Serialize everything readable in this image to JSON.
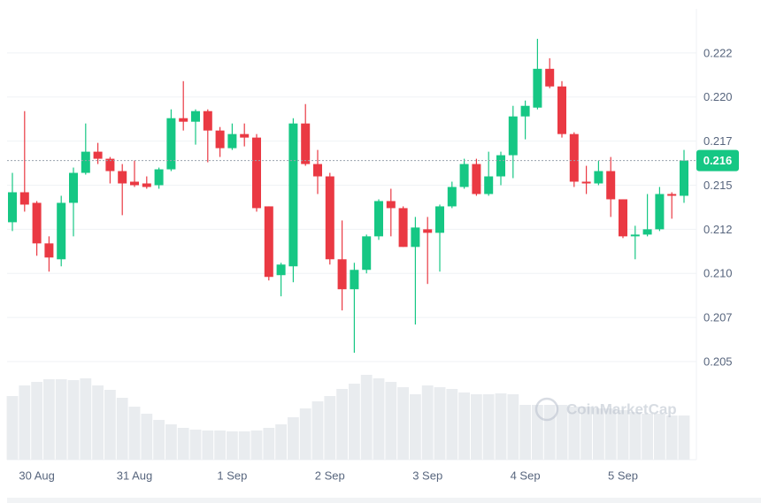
{
  "chart_data": {
    "type": "candlestick",
    "categories": [
      null,
      null,
      "30 Aug",
      null,
      null,
      null,
      null,
      null,
      null,
      null,
      "31 Aug",
      null,
      null,
      null,
      null,
      null,
      null,
      null,
      "1 Sep",
      null,
      null,
      null,
      null,
      null,
      null,
      null,
      "2 Sep",
      null,
      null,
      null,
      null,
      null,
      null,
      null,
      "3 Sep",
      null,
      null,
      null,
      null,
      null,
      null,
      null,
      "4 Sep",
      null,
      null,
      null,
      null,
      null,
      null,
      null,
      "5 Sep",
      null,
      null,
      null,
      null,
      null
    ],
    "series": [
      {
        "open": [
          0.2129,
          0.2146,
          0.214,
          0.2117,
          0.2108,
          0.214,
          0.2157,
          0.2169,
          0.2165,
          0.2158,
          0.2152,
          0.2151,
          0.215,
          0.2159,
          0.2188,
          0.2186,
          0.2192,
          0.2181,
          0.2171,
          0.2179,
          0.2177,
          0.2138,
          0.2099,
          0.2104,
          0.2185,
          0.2162,
          0.2155,
          0.2108,
          0.2091,
          0.2102,
          0.2121,
          0.2141,
          0.2137,
          0.2115,
          0.2125,
          0.2123,
          0.2138,
          0.2149,
          0.2162,
          0.2145,
          0.2155,
          0.2167,
          0.2189,
          0.2194,
          0.2216,
          0.2206,
          0.2179,
          0.2152,
          0.2151,
          0.2158,
          0.2142,
          0.2121,
          0.2122,
          0.2125,
          0.2145,
          0.2144
        ],
        "high": [
          0.2157,
          0.2192,
          0.2141,
          0.2121,
          0.2144,
          0.216,
          0.2185,
          0.2174,
          0.2166,
          0.2162,
          0.2164,
          0.2155,
          0.216,
          0.2193,
          0.2209,
          0.2193,
          0.2193,
          0.2183,
          0.2185,
          0.2185,
          0.2179,
          0.2138,
          0.2106,
          0.2188,
          0.2196,
          0.217,
          0.2157,
          0.213,
          0.2106,
          0.2122,
          0.2142,
          0.2148,
          0.2138,
          0.2132,
          0.2132,
          0.2139,
          0.2152,
          0.2165,
          0.2165,
          0.2169,
          0.2169,
          0.2195,
          0.2198,
          0.2233,
          0.2222,
          0.2209,
          0.218,
          0.2161,
          0.2164,
          0.2166,
          0.2142,
          0.2127,
          0.2145,
          0.2149,
          0.2146,
          0.217
        ],
        "low": [
          0.2124,
          0.2135,
          0.211,
          0.2101,
          0.2104,
          0.2121,
          0.2156,
          0.2162,
          0.2151,
          0.2133,
          0.2149,
          0.2148,
          0.2148,
          0.2158,
          0.2181,
          0.2173,
          0.2163,
          0.2166,
          0.217,
          0.2172,
          0.2135,
          0.2096,
          0.2087,
          0.2095,
          0.2161,
          0.2145,
          0.2105,
          0.2079,
          0.2055,
          0.21,
          0.2119,
          0.2121,
          0.2115,
          0.2071,
          0.2094,
          0.2101,
          0.2137,
          0.2148,
          0.2144,
          0.2144,
          0.215,
          0.2154,
          0.2176,
          0.2193,
          0.2205,
          0.2177,
          0.2149,
          0.2145,
          0.215,
          0.2132,
          0.212,
          0.2108,
          0.2121,
          0.2124,
          0.2131,
          0.214
        ],
        "close": [
          0.2146,
          0.2139,
          0.2117,
          0.2109,
          0.214,
          0.2157,
          0.2169,
          0.2165,
          0.2158,
          0.2151,
          0.215,
          0.2149,
          0.2159,
          0.2188,
          0.2186,
          0.2192,
          0.2181,
          0.2171,
          0.2179,
          0.2177,
          0.2137,
          0.2098,
          0.2105,
          0.2185,
          0.2162,
          0.2155,
          0.2108,
          0.2091,
          0.2102,
          0.2121,
          0.2141,
          0.2137,
          0.2115,
          0.2126,
          0.2123,
          0.2138,
          0.2149,
          0.2162,
          0.2145,
          0.2155,
          0.2167,
          0.2189,
          0.2195,
          0.2216,
          0.2206,
          0.2179,
          0.2152,
          0.2151,
          0.2158,
          0.2142,
          0.2121,
          0.2122,
          0.2125,
          0.2145,
          0.2144,
          0.2164
        ],
        "volume": [
          72,
          84,
          88,
          91,
          91,
          90,
          92,
          84,
          79,
          70,
          60,
          52,
          45,
          40,
          36,
          34,
          33,
          33,
          32,
          32,
          33,
          36,
          40,
          48,
          58,
          66,
          72,
          80,
          86,
          96,
          92,
          88,
          82,
          74,
          84,
          82,
          80,
          76,
          74,
          74,
          75,
          74,
          62,
          62,
          62,
          62,
          60,
          60,
          58,
          58,
          56,
          54,
          52,
          52,
          50,
          50
        ],
        "up_color": "#16c784",
        "down_color": "#ea3943",
        "volume_color": "#e9ecef"
      }
    ],
    "ylim": [
      0.205,
      0.225
    ],
    "yticks": [
      0.205,
      {
        "value": 0.2075,
        "label": "0.207"
      },
      {
        "value": 0.21,
        "label": "0.210"
      },
      {
        "value": 0.2125,
        "label": "0.212"
      },
      0.215,
      {
        "value": 0.2175,
        "label": "0.217"
      },
      {
        "value": 0.22,
        "label": "0.220"
      },
      {
        "value": 0.2225,
        "label": "0.222"
      }
    ],
    "grid": true,
    "current_price": {
      "value": 0.2164,
      "label": "0.216"
    },
    "watermark": "CoinMarketCap"
  }
}
